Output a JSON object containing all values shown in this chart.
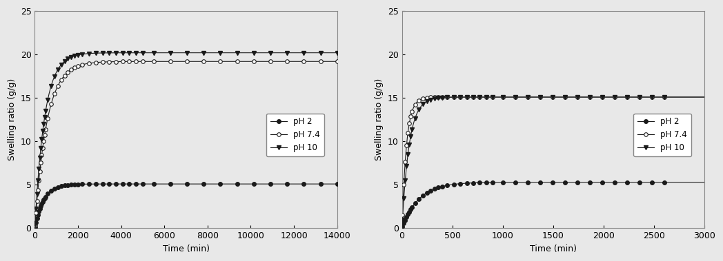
{
  "left": {
    "xlabel": "Time (min)",
    "ylabel": "Swelling ratio (g/g)",
    "xlim": [
      0,
      14000
    ],
    "ylim": [
      0,
      25
    ],
    "xticks": [
      0,
      2000,
      4000,
      6000,
      8000,
      10000,
      12000,
      14000
    ],
    "yticks": [
      0,
      5,
      10,
      15,
      20,
      25
    ],
    "legend": [
      "pH 2",
      "pH 7.4",
      "pH 10"
    ],
    "ph2_params": {
      "Smax": 5.1,
      "k": 0.0025,
      "t0": 0
    },
    "ph74_params": {
      "Smax": 19.2,
      "k": 0.0018,
      "t0": 0
    },
    "ph10_params": {
      "Smax": 20.2,
      "k": 0.0022,
      "t0": 0
    }
  },
  "right": {
    "xlabel": "Time (min)",
    "ylabel": "Swelling ratio (g/g)",
    "xlim": [
      0,
      3000
    ],
    "ylim": [
      0,
      25
    ],
    "xticks": [
      0,
      500,
      1000,
      1500,
      2000,
      2500,
      3000
    ],
    "yticks": [
      0,
      5,
      10,
      15,
      20,
      25
    ],
    "legend": [
      "pH 2",
      "pH 7.4",
      "pH 10"
    ],
    "ph2_params": {
      "Smax": 5.3,
      "k": 0.006,
      "t0": 0
    },
    "ph74_params": {
      "Smax": 15.1,
      "k": 0.022,
      "t0": 0
    },
    "ph10_params": {
      "Smax": 15.1,
      "k": 0.014,
      "t0": 0
    }
  },
  "line_color": "#1a1a1a",
  "bg_color": "#e8e8e8",
  "marker_size": 4,
  "font_size": 9,
  "legend_font_size": 8.5
}
